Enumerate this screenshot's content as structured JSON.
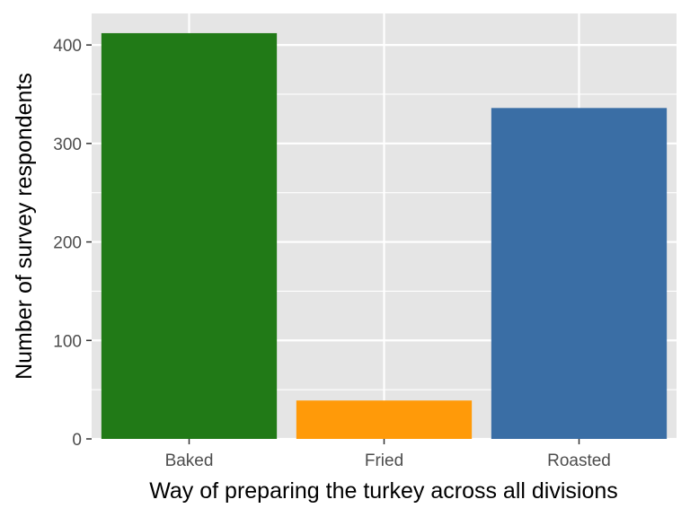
{
  "chart_data": {
    "type": "bar",
    "title": "",
    "xlabel": "Way of preparing the turkey across all divisions",
    "ylabel": "Number of survey respondents",
    "categories": [
      "Baked",
      "Fried",
      "Roasted"
    ],
    "values": [
      412,
      39,
      336
    ],
    "colors": [
      "#217a17",
      "#ff9a09",
      "#3a6ea5"
    ],
    "ylim": [
      0,
      432
    ],
    "yticks": [
      0,
      100,
      200,
      300,
      400
    ],
    "grid": true,
    "legend": "none",
    "panel_background": "#e5e5e5",
    "gridline_color": "#ffffff"
  }
}
